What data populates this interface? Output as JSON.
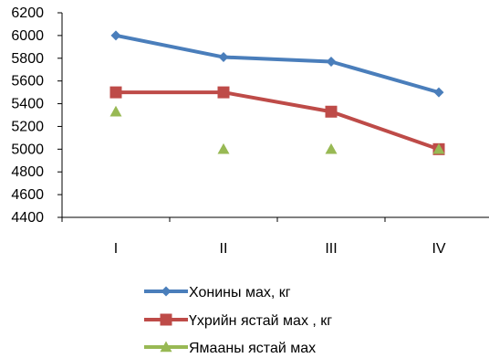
{
  "chart_data": {
    "type": "line",
    "categories": [
      "I",
      "II",
      "III",
      "IV"
    ],
    "ylim": [
      4400,
      6200
    ],
    "yticks": [
      4400,
      4600,
      4800,
      5000,
      5200,
      5400,
      5600,
      5800,
      6000,
      6200
    ],
    "grid": false,
    "legend_position": "bottom",
    "series": [
      {
        "name": "Хонины мах, кг",
        "values": [
          6000,
          5810,
          5770,
          5500
        ],
        "color": "#4a7ebb",
        "marker": "diamond",
        "line": true
      },
      {
        "name": "Үхрийн ястай мах , кг",
        "values": [
          5500,
          5500,
          5330,
          5000
        ],
        "color": "#be4b48",
        "marker": "square",
        "line": true
      },
      {
        "name": "Ямааны ястай мах",
        "values": [
          5330,
          5000,
          5000,
          5000
        ],
        "color": "#98b954",
        "marker": "triangle",
        "line": false
      }
    ]
  }
}
